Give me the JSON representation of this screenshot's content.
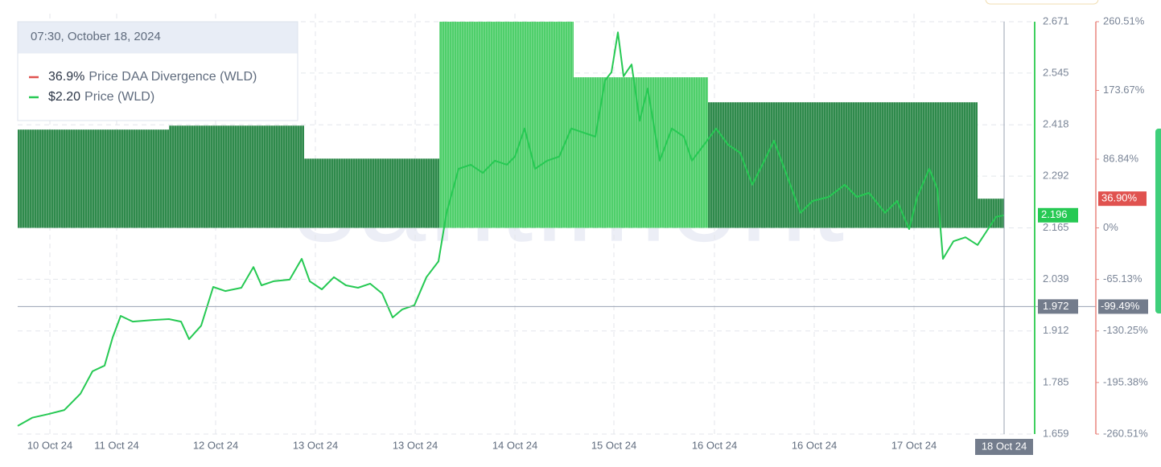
{
  "chart_data": {
    "type": "line",
    "watermark": "santiment",
    "tooltip": {
      "date": "07:30, October 18, 2024",
      "items": [
        {
          "value_label": "36.9%",
          "name": "Price DAA Divergence (WLD)",
          "color": "#e0524f"
        },
        {
          "value_label": "$2.20",
          "name": "Price (WLD)",
          "color": "#26c953"
        }
      ]
    },
    "xlim": [
      0,
      1263
    ],
    "xticks": [
      {
        "value": 40,
        "label": "10 Oct 24"
      },
      {
        "value": 123,
        "label": "11 Oct 24"
      },
      {
        "value": 246,
        "label": "12 Oct 24"
      },
      {
        "value": 370,
        "label": "13 Oct 24"
      },
      {
        "value": 494,
        "label": "13 Oct 24"
      },
      {
        "value": 618,
        "label": "14 Oct 24"
      },
      {
        "value": 741,
        "label": "15 Oct 24"
      },
      {
        "value": 866,
        "label": "16 Oct 24"
      },
      {
        "value": 990,
        "label": "16 Oct 24"
      },
      {
        "value": 1114,
        "label": "17 Oct 24"
      }
    ],
    "ylim": [
      1.659,
      2.671
    ],
    "yticks": [
      2.671,
      2.545,
      2.418,
      2.292,
      2.165,
      2.039,
      1.912,
      1.785,
      1.659
    ],
    "y2lim": [
      -260.51,
      260.51
    ],
    "y2ticks": [
      {
        "value": 260.51,
        "label": "260.51%"
      },
      {
        "value": 173.67,
        "label": "173.67%"
      },
      {
        "value": 86.84,
        "label": "86.84%"
      },
      {
        "value": 0,
        "label": "0%"
      },
      {
        "value": -65.13,
        "label": "-65.13%"
      },
      {
        "value": -130.25,
        "label": "-130.25%"
      },
      {
        "value": -195.38,
        "label": "-195.38%"
      },
      {
        "value": -260.51,
        "label": "-260.51%"
      }
    ],
    "grid": true,
    "bars": {
      "name": "Price DAA Divergence (WLD)",
      "axis": "y2",
      "edges": [
        0,
        188,
        356,
        524,
        691,
        858,
        1193,
        1226
      ],
      "values": [
        124.2,
        129.2,
        87.5,
        260.5,
        190.3,
        158.7,
        36.9
      ],
      "colors": [
        "#2f8a4c",
        "#2f8a4c",
        "#2f8a4c",
        "#4fcf6b",
        "#4fcf6b",
        "#2f8a4c",
        "#2f8a4c"
      ]
    },
    "line": {
      "name": "Price (WLD)",
      "color": "#26c953",
      "x": [
        0,
        18,
        38,
        58,
        78,
        93,
        108,
        118,
        128,
        143,
        168,
        188,
        203,
        213,
        228,
        243,
        258,
        278,
        293,
        303,
        318,
        338,
        353,
        363,
        378,
        393,
        408,
        423,
        438,
        453,
        466,
        478,
        493,
        508,
        523,
        533,
        548,
        563,
        578,
        593,
        608,
        618,
        630,
        643,
        658,
        673,
        688,
        703,
        718,
        730,
        738,
        746,
        753,
        763,
        773,
        783,
        798,
        813,
        828,
        838,
        853,
        868,
        883,
        898,
        913,
        928,
        940,
        953,
        973,
        988,
        1008,
        1028,
        1043,
        1058,
        1078,
        1093,
        1108,
        1118,
        1133,
        1143,
        1150,
        1163,
        1178,
        1193,
        1206,
        1216,
        1226
      ],
      "values": [
        1.679,
        1.699,
        1.708,
        1.718,
        1.758,
        1.813,
        1.827,
        1.896,
        1.949,
        1.935,
        1.939,
        1.941,
        1.935,
        1.892,
        1.925,
        2.02,
        2.01,
        2.018,
        2.069,
        2.024,
        2.034,
        2.038,
        2.089,
        2.034,
        2.014,
        2.044,
        2.024,
        2.018,
        2.028,
        2.004,
        1.945,
        1.965,
        1.975,
        2.044,
        2.083,
        2.202,
        2.31,
        2.32,
        2.3,
        2.33,
        2.32,
        2.34,
        2.409,
        2.31,
        2.33,
        2.34,
        2.409,
        2.399,
        2.389,
        2.527,
        2.547,
        2.645,
        2.537,
        2.566,
        2.428,
        2.507,
        2.33,
        2.409,
        2.389,
        2.33,
        2.369,
        2.409,
        2.369,
        2.349,
        2.271,
        2.33,
        2.379,
        2.31,
        2.202,
        2.231,
        2.241,
        2.271,
        2.241,
        2.251,
        2.202,
        2.231,
        2.162,
        2.241,
        2.31,
        2.261,
        2.089,
        2.132,
        2.142,
        2.123,
        2.162,
        2.192,
        2.196
      ]
    },
    "last_price": 2.196,
    "last_divergence": {
      "value": 36.9,
      "label": "36.90%"
    },
    "crosshair": {
      "x": 1226,
      "x_label": "18 Oct 24",
      "y": 1.972,
      "y2": {
        "value": -99.49,
        "label": "-99.49%"
      }
    }
  }
}
